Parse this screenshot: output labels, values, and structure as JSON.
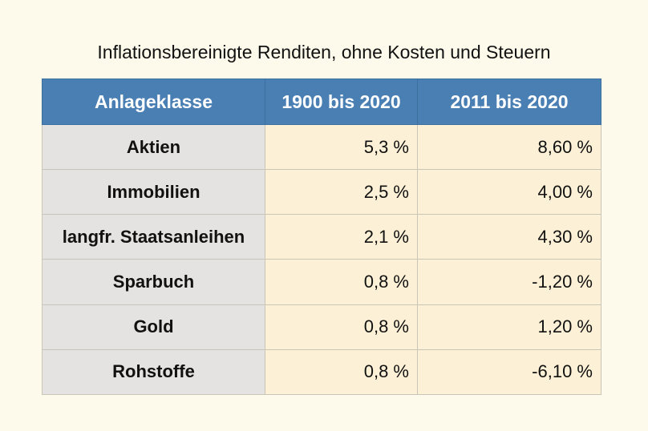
{
  "caption": "Inflationsbereinigte Renditen, ohne Kosten und Steuern",
  "table": {
    "headers": [
      "Anlageklasse",
      "1900 bis 2020",
      "2011 bis 2020"
    ],
    "rows": [
      [
        "Aktien",
        "5,3 %",
        "8,60 %"
      ],
      [
        "Immobilien",
        "2,5 %",
        "4,00 %"
      ],
      [
        "langfr. Staatsanleihen",
        "2,1 %",
        "4,30 %"
      ],
      [
        "Sparbuch",
        "0,8 %",
        "-1,20 %"
      ],
      [
        "Gold",
        "0,8 %",
        "1,20 %"
      ],
      [
        "Rohstoffe",
        "0,8 %",
        "-6,10 %"
      ]
    ]
  },
  "colors": {
    "background": "#fdfaeb",
    "header": "#4a7fb4",
    "name_column": "#e4e3e1",
    "value_columns": "#fcf1d6"
  }
}
